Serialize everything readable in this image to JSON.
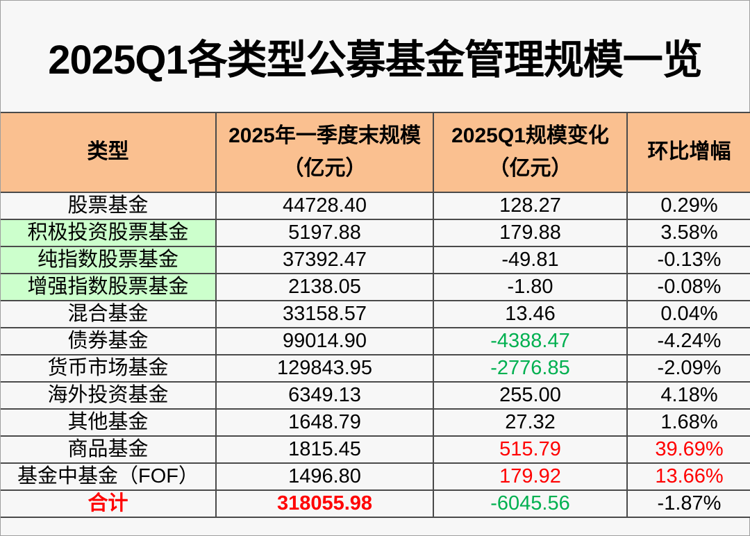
{
  "title": "2025Q1各类型公募基金管理规模一览",
  "colors": {
    "header_bg": "#FAC090",
    "highlight_cell_bg": "#CCFFCC",
    "negative_green": "#00B050",
    "emphasis_red": "#FF0000",
    "text_black": "#000000",
    "grid_line": "#4a4a4a"
  },
  "table": {
    "headers": [
      {
        "line1": "类型",
        "line2": ""
      },
      {
        "line1": "2025年一季度末规模",
        "line2": "（亿元）"
      },
      {
        "line1": "2025Q1规模变化",
        "line2": "（亿元）"
      },
      {
        "line1": "环比增幅",
        "line2": ""
      }
    ],
    "rows": [
      {
        "cells": [
          {
            "text": "股票基金",
            "color": "black",
            "bold": false,
            "bg": "none"
          },
          {
            "text": "44728.40",
            "color": "black",
            "bold": false,
            "bg": "none"
          },
          {
            "text": "128.27",
            "color": "black",
            "bold": false,
            "bg": "none"
          },
          {
            "text": "0.29%",
            "color": "black",
            "bold": false,
            "bg": "none"
          }
        ]
      },
      {
        "cells": [
          {
            "text": "积极投资股票基金",
            "color": "black",
            "bold": false,
            "bg": "green"
          },
          {
            "text": "5197.88",
            "color": "black",
            "bold": false,
            "bg": "none"
          },
          {
            "text": "179.88",
            "color": "black",
            "bold": false,
            "bg": "none"
          },
          {
            "text": "3.58%",
            "color": "black",
            "bold": false,
            "bg": "none"
          }
        ]
      },
      {
        "cells": [
          {
            "text": "纯指数股票基金",
            "color": "black",
            "bold": false,
            "bg": "green"
          },
          {
            "text": "37392.47",
            "color": "black",
            "bold": false,
            "bg": "none"
          },
          {
            "text": "-49.81",
            "color": "black",
            "bold": false,
            "bg": "none"
          },
          {
            "text": "-0.13%",
            "color": "black",
            "bold": false,
            "bg": "none"
          }
        ]
      },
      {
        "cells": [
          {
            "text": "增强指数股票基金",
            "color": "black",
            "bold": false,
            "bg": "green"
          },
          {
            "text": "2138.05",
            "color": "black",
            "bold": false,
            "bg": "none"
          },
          {
            "text": "-1.80",
            "color": "black",
            "bold": false,
            "bg": "none"
          },
          {
            "text": "-0.08%",
            "color": "black",
            "bold": false,
            "bg": "none"
          }
        ]
      },
      {
        "cells": [
          {
            "text": "混合基金",
            "color": "black",
            "bold": false,
            "bg": "none"
          },
          {
            "text": "33158.57",
            "color": "black",
            "bold": false,
            "bg": "none"
          },
          {
            "text": "13.46",
            "color": "black",
            "bold": false,
            "bg": "none"
          },
          {
            "text": "0.04%",
            "color": "black",
            "bold": false,
            "bg": "none"
          }
        ]
      },
      {
        "cells": [
          {
            "text": "债券基金",
            "color": "black",
            "bold": false,
            "bg": "none"
          },
          {
            "text": "99014.90",
            "color": "black",
            "bold": false,
            "bg": "none"
          },
          {
            "text": "-4388.47",
            "color": "green",
            "bold": false,
            "bg": "none"
          },
          {
            "text": "-4.24%",
            "color": "black",
            "bold": false,
            "bg": "none"
          }
        ]
      },
      {
        "cells": [
          {
            "text": "货币市场基金",
            "color": "black",
            "bold": false,
            "bg": "none"
          },
          {
            "text": "129843.95",
            "color": "black",
            "bold": false,
            "bg": "none"
          },
          {
            "text": "-2776.85",
            "color": "green",
            "bold": false,
            "bg": "none"
          },
          {
            "text": "-2.09%",
            "color": "black",
            "bold": false,
            "bg": "none"
          }
        ]
      },
      {
        "cells": [
          {
            "text": "海外投资基金",
            "color": "black",
            "bold": false,
            "bg": "none"
          },
          {
            "text": "6349.13",
            "color": "black",
            "bold": false,
            "bg": "none"
          },
          {
            "text": "255.00",
            "color": "black",
            "bold": false,
            "bg": "none"
          },
          {
            "text": "4.18%",
            "color": "black",
            "bold": false,
            "bg": "none"
          }
        ]
      },
      {
        "cells": [
          {
            "text": "其他基金",
            "color": "black",
            "bold": false,
            "bg": "none"
          },
          {
            "text": "1648.79",
            "color": "black",
            "bold": false,
            "bg": "none"
          },
          {
            "text": "27.32",
            "color": "black",
            "bold": false,
            "bg": "none"
          },
          {
            "text": "1.68%",
            "color": "black",
            "bold": false,
            "bg": "none"
          }
        ]
      },
      {
        "cells": [
          {
            "text": "商品基金",
            "color": "black",
            "bold": false,
            "bg": "none"
          },
          {
            "text": "1815.45",
            "color": "black",
            "bold": false,
            "bg": "none"
          },
          {
            "text": "515.79",
            "color": "red",
            "bold": false,
            "bg": "none"
          },
          {
            "text": "39.69%",
            "color": "red",
            "bold": false,
            "bg": "none"
          }
        ]
      },
      {
        "cells": [
          {
            "text": "基金中基金（FOF）",
            "color": "black",
            "bold": false,
            "bg": "none"
          },
          {
            "text": "1496.80",
            "color": "black",
            "bold": false,
            "bg": "none"
          },
          {
            "text": "179.92",
            "color": "red",
            "bold": false,
            "bg": "none"
          },
          {
            "text": "13.66%",
            "color": "red",
            "bold": false,
            "bg": "none"
          }
        ]
      },
      {
        "cells": [
          {
            "text": "合计",
            "color": "red",
            "bold": true,
            "bg": "none"
          },
          {
            "text": "318055.98",
            "color": "red",
            "bold": true,
            "bg": "none"
          },
          {
            "text": "-6045.56",
            "color": "green",
            "bold": false,
            "bg": "none"
          },
          {
            "text": "-1.87%",
            "color": "black",
            "bold": false,
            "bg": "none"
          }
        ]
      }
    ]
  },
  "chart_data": {
    "type": "table",
    "title": "2025Q1各类型公募基金管理规模一览",
    "columns": [
      "类型",
      "2025年一季度末规模（亿元）",
      "2025Q1规模变化（亿元）",
      "环比增幅"
    ],
    "rows": [
      [
        "股票基金",
        "44728.40",
        "128.27",
        "0.29%"
      ],
      [
        "积极投资股票基金",
        "5197.88",
        "179.88",
        "3.58%"
      ],
      [
        "纯指数股票基金",
        "37392.47",
        "-49.81",
        "-0.13%"
      ],
      [
        "增强指数股票基金",
        "2138.05",
        "-1.80",
        "-0.08%"
      ],
      [
        "混合基金",
        "33158.57",
        "13.46",
        "0.04%"
      ],
      [
        "债券基金",
        "99014.90",
        "-4388.47",
        "-4.24%"
      ],
      [
        "货币市场基金",
        "129843.95",
        "-2776.85",
        "-2.09%"
      ],
      [
        "海外投资基金",
        "6349.13",
        "255.00",
        "4.18%"
      ],
      [
        "其他基金",
        "1648.79",
        "27.32",
        "1.68%"
      ],
      [
        "商品基金",
        "1815.45",
        "515.79",
        "39.69%"
      ],
      [
        "基金中基金（FOF）",
        "1496.80",
        "179.92",
        "13.66%"
      ],
      [
        "合计",
        "318055.98",
        "-6045.56",
        "-1.87%"
      ]
    ]
  }
}
